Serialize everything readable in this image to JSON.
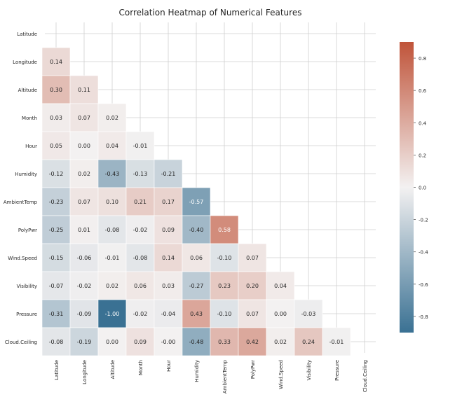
{
  "chart_data": {
    "type": "heatmap",
    "title": "Correlation Heatmap of Numerical Features",
    "labels": [
      "Latitude",
      "Longitude",
      "Altitude",
      "Month",
      "Hour",
      "Humidity",
      "AmbientTemp",
      "PolyPwr",
      "Wind.Speed",
      "Visibility",
      "Pressure",
      "Cloud.Ceiling"
    ],
    "mask": "upper-triangle-including-diagonal",
    "matrix": [
      [
        null,
        null,
        null,
        null,
        null,
        null,
        null,
        null,
        null,
        null,
        null,
        null
      ],
      [
        "0.14",
        null,
        null,
        null,
        null,
        null,
        null,
        null,
        null,
        null,
        null,
        null
      ],
      [
        "0.30",
        "0.11",
        null,
        null,
        null,
        null,
        null,
        null,
        null,
        null,
        null,
        null
      ],
      [
        "0.03",
        "0.07",
        "0.02",
        null,
        null,
        null,
        null,
        null,
        null,
        null,
        null,
        null
      ],
      [
        "0.05",
        "0.00",
        "0.04",
        "-0.01",
        null,
        null,
        null,
        null,
        null,
        null,
        null,
        null
      ],
      [
        "-0.12",
        "0.02",
        "-0.43",
        "-0.13",
        "-0.21",
        null,
        null,
        null,
        null,
        null,
        null,
        null
      ],
      [
        "-0.23",
        "0.07",
        "0.10",
        "0.21",
        "0.17",
        "-0.57",
        null,
        null,
        null,
        null,
        null,
        null
      ],
      [
        "-0.25",
        "0.01",
        "-0.08",
        "-0.02",
        "0.09",
        "-0.40",
        "0.58",
        null,
        null,
        null,
        null,
        null
      ],
      [
        "-0.15",
        "-0.06",
        "-0.01",
        "-0.08",
        "0.14",
        "0.06",
        "-0.10",
        "0.07",
        null,
        null,
        null,
        null
      ],
      [
        "-0.07",
        "-0.02",
        "0.02",
        "0.06",
        "0.03",
        "-0.27",
        "0.23",
        "0.20",
        "0.04",
        null,
        null,
        null
      ],
      [
        "-0.31",
        "-0.09",
        "-1.00",
        "-0.02",
        "-0.04",
        "0.43",
        "-0.10",
        "0.07",
        "0.00",
        "-0.03",
        null,
        null
      ],
      [
        "-0.08",
        "-0.19",
        "0.00",
        "0.09",
        "-0.00",
        "-0.48",
        "0.33",
        "0.42",
        "0.02",
        "0.24",
        "-0.01",
        null
      ]
    ],
    "colorbar": {
      "range": [
        -0.9,
        0.9
      ],
      "ticks": [
        "-0.8",
        "-0.6",
        "-0.4",
        "-0.2",
        "0.0",
        "0.2",
        "0.4",
        "0.6",
        "0.8"
      ],
      "colors": {
        "low": "#3a7193",
        "mid": "#f3f1f1",
        "high": "#c0543a"
      }
    },
    "grid": true,
    "legend": "right"
  }
}
